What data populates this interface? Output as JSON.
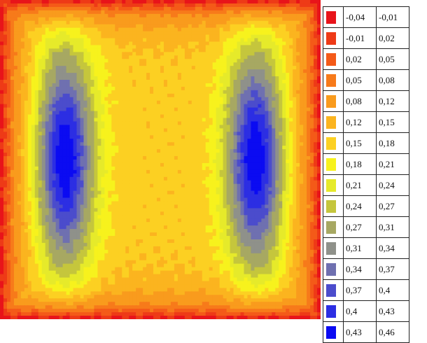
{
  "chart_data": {
    "type": "heatmap",
    "title": "",
    "xlabel": "",
    "ylabel": "",
    "colorbar": {
      "placement": "right",
      "bins": [
        {
          "low": "-0,04",
          "high": "-0,01",
          "color": "#e8141a"
        },
        {
          "low": "-0,01",
          "high": "0,02",
          "color": "#ee3a17"
        },
        {
          "low": "0,02",
          "high": "0,05",
          "color": "#f45a18"
        },
        {
          "low": "0,05",
          "high": "0,08",
          "color": "#f77a1a"
        },
        {
          "low": "0,08",
          "high": "0,12",
          "color": "#f99b1d"
        },
        {
          "low": "0,12",
          "high": "0,15",
          "color": "#fbb41f"
        },
        {
          "low": "0,15",
          "high": "0,18",
          "color": "#fcd022"
        },
        {
          "low": "0,18",
          "high": "0,21",
          "color": "#f7f21d"
        },
        {
          "low": "0,21",
          "high": "0,24",
          "color": "#e6ea2a"
        },
        {
          "low": "0,24",
          "high": "0,27",
          "color": "#c5c63c"
        },
        {
          "low": "0,27",
          "high": "0,31",
          "color": "#a7a862"
        },
        {
          "low": "0,31",
          "high": "0,34",
          "color": "#8f918a"
        },
        {
          "low": "0,34",
          "high": "0,37",
          "color": "#6f70b0"
        },
        {
          "low": "0,37",
          "high": "0,4",
          "color": "#4b4ccc"
        },
        {
          "low": "0,4",
          "high": "0,43",
          "color": "#2c2ee3"
        },
        {
          "low": "0,43",
          "high": "0,46",
          "color": "#0b0bf2"
        }
      ]
    },
    "field": {
      "description_free": true,
      "grid": "smooth scalar field on unit square, two elongated maxima near x=0.2 and x=0.8, minimum near edges",
      "maxima": [
        {
          "x": 0.2,
          "y": 0.5,
          "value": 0.45
        },
        {
          "x": 0.8,
          "y": 0.5,
          "value": 0.45
        }
      ],
      "boundary_value": -0.03,
      "center_value": 0.16
    }
  }
}
